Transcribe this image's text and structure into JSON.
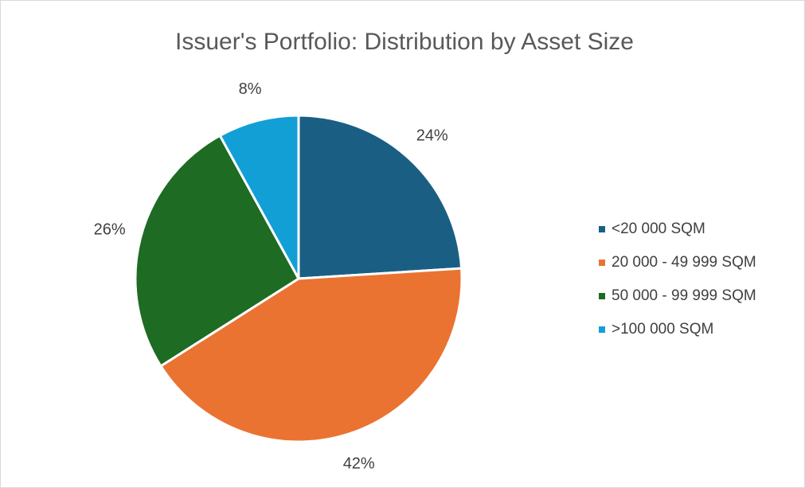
{
  "chart_data": {
    "type": "pie",
    "title": "Issuer's Portfolio: Distribution by Asset Size",
    "categories": [
      "<20 000 SQM",
      "20 000 - 49 999 SQM",
      "50 000 - 99 999 SQM",
      ">100 000 SQM"
    ],
    "values": [
      24,
      42,
      26,
      8
    ],
    "value_labels": [
      "24%",
      "42%",
      "26%",
      "8%"
    ],
    "colors": [
      "#1a5f83",
      "#ea7332",
      "#1e6b24",
      "#129fd6"
    ],
    "legend": "right"
  }
}
